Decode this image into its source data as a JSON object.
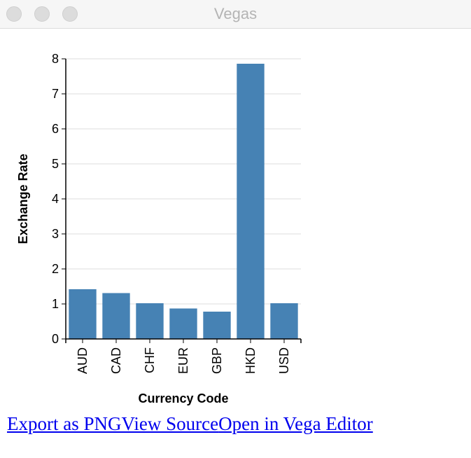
{
  "window": {
    "title": "Vegas"
  },
  "links": [
    "Export as PNG",
    "View Source",
    "Open in Vega Editor"
  ],
  "chart_data": {
    "type": "bar",
    "categories": [
      "AUD",
      "CAD",
      "CHF",
      "EUR",
      "GBP",
      "HKD",
      "USD"
    ],
    "values": [
      1.42,
      1.31,
      1.02,
      0.87,
      0.78,
      7.86,
      1.02
    ],
    "xlabel": "Currency Code",
    "ylabel": "Exchange Rate",
    "ylim": [
      0,
      8
    ],
    "yticks": [
      0,
      1,
      2,
      3,
      4,
      5,
      6,
      7,
      8
    ],
    "grid": true,
    "colors": {
      "bar": "#4682b4",
      "grid": "#dddddd",
      "axis": "#000000"
    }
  }
}
